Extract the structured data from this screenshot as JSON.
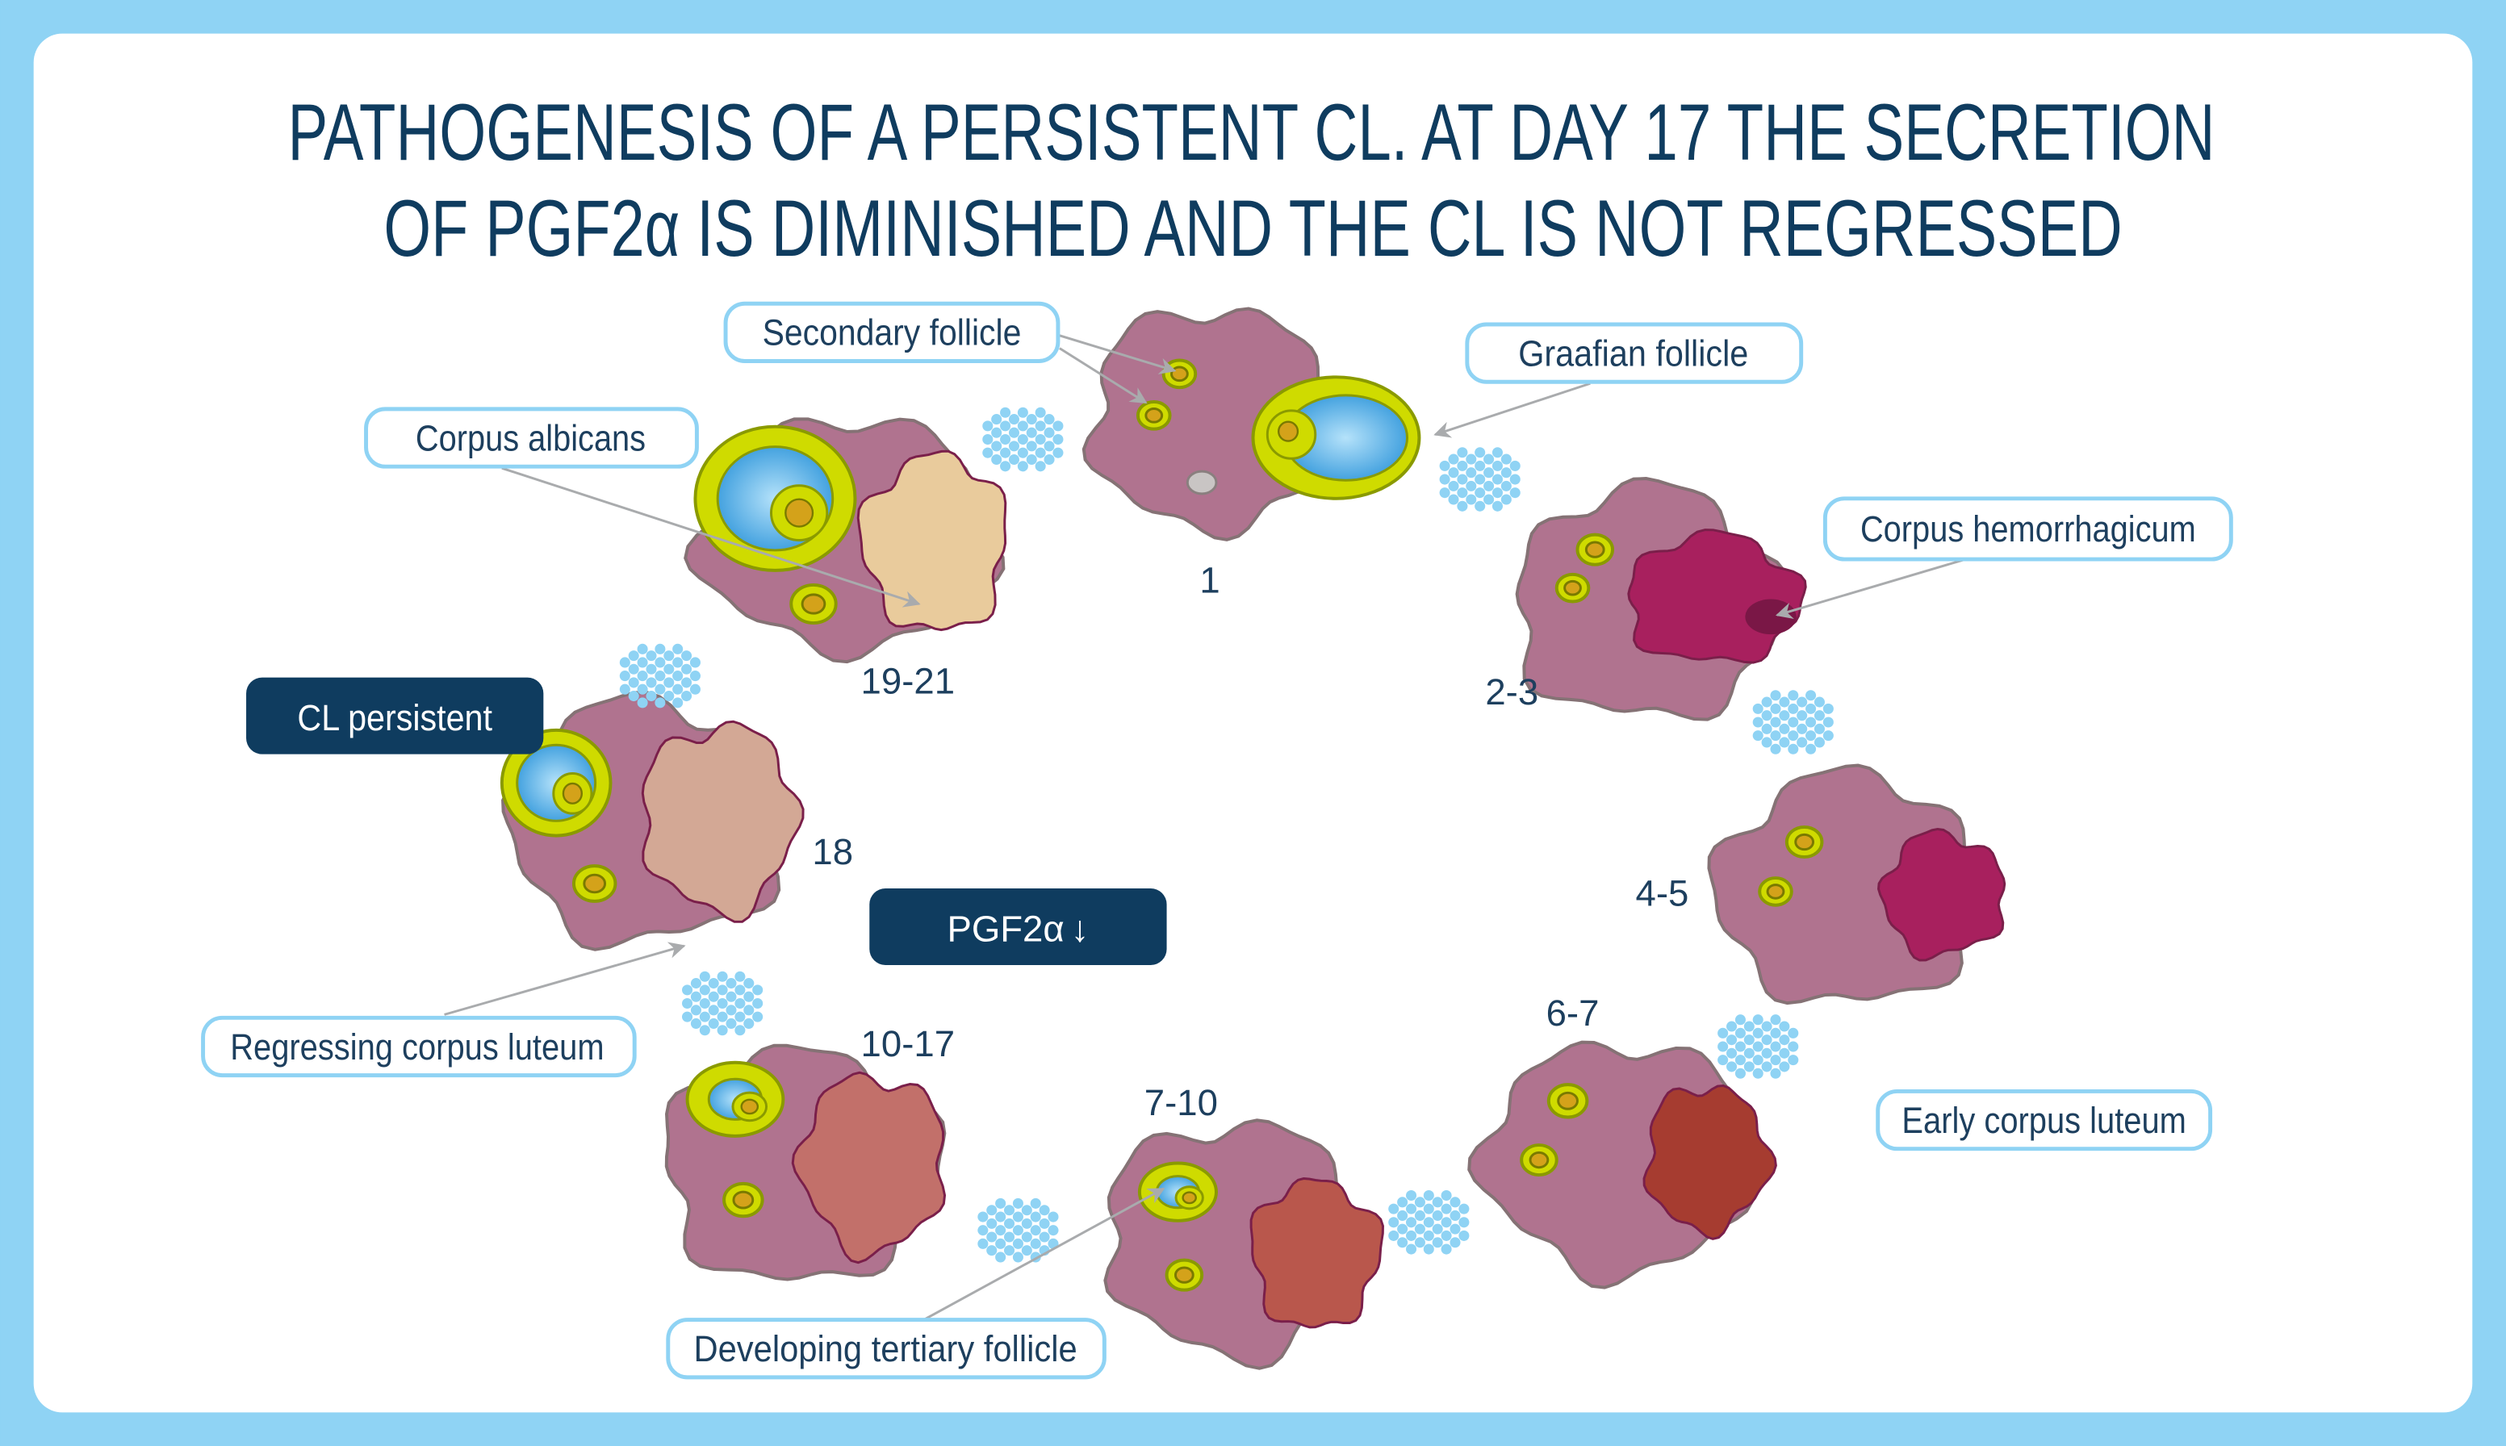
{
  "title": {
    "line1": "PATHOGENESIS OF A PERSISTENT CL. AT DAY 17 THE SECRETION",
    "line2": "OF PGF2α IS DIMINISHED AND THE CL IS NOT REGRESSED"
  },
  "labels": {
    "secondary_follicle": "Secondary follicle",
    "graafian_follicle": "Graafian follicle",
    "corpus_albicans": "Corpus albicans",
    "corpus_hemorrhagicum": "Corpus hemorrhagicum",
    "early_corpus_luteum": "Early corpus luteum",
    "developing_tertiary_follicle": "Developing tertiary follicle",
    "regressing_corpus_luteum": "Regressing corpus luteum",
    "cl_persistent": "CL persistent",
    "pgf2a": "PGF2α"
  },
  "pgf2a_arrow": "↓",
  "stages": [
    {
      "day": "1"
    },
    {
      "day": "2-3",
      "cl_color": "#a8205e"
    },
    {
      "day": "4-5",
      "cl_color": "#a8205e"
    },
    {
      "day": "6-7",
      "cl_color": "#a63c30"
    },
    {
      "day": "7-10",
      "cl_color": "#b9574c"
    },
    {
      "day": "10-17",
      "cl_color": "#c2706a"
    },
    {
      "day": "18",
      "cl_color": "#d3a895"
    },
    {
      "day": "19-21",
      "cl_color": "#e9cb9c"
    }
  ],
  "colors": {
    "frame": "#8fd3f4",
    "ovary": "#b0738f",
    "follicle": "#cfdb00",
    "oocyte": "#d4a21a",
    "antrum": "#3aa0e0",
    "title": "#0f3c5f",
    "hormone_dots": "#8fd3f4"
  }
}
